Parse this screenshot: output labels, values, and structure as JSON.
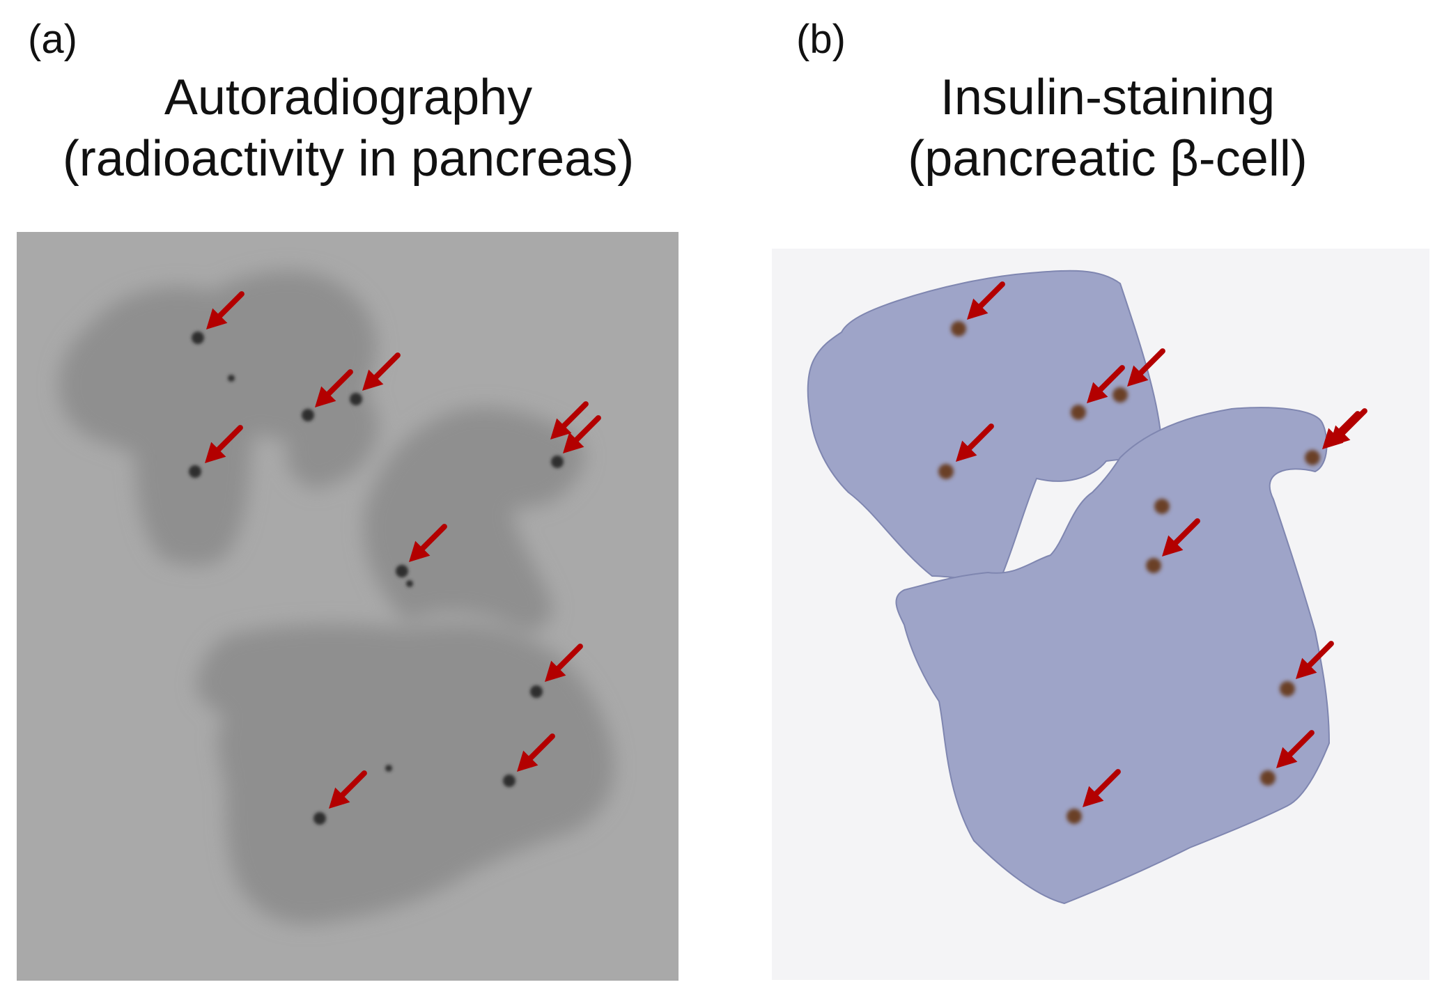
{
  "panels": [
    {
      "letter": "(a)",
      "title_line1": "Autoradiography",
      "title_line2": "(radioactivity in pancreas)",
      "arrow_count": 10
    },
    {
      "letter": "(b)",
      "title_line1": "Insulin-staining",
      "title_line2": "(pancreatic β-cell)",
      "arrow_count": 10
    }
  ],
  "colors": {
    "arrow": "#b30000",
    "autoradiography_background": "#a9a9a9",
    "autoradiography_tissue": "#8f8f8f",
    "hotspot": "#2e2e2e",
    "stain_background": "#f4f4f6",
    "stained_tissue": "#9ea4c8",
    "insulin_stain": "#6a4028"
  }
}
